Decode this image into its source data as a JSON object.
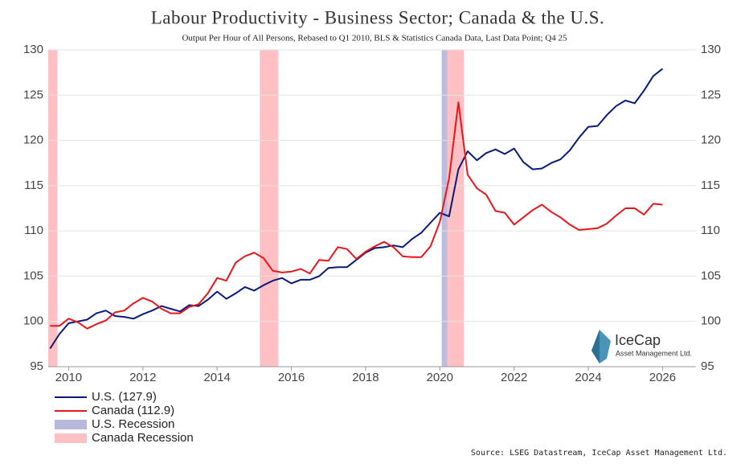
{
  "chart_data": {
    "type": "line",
    "title": "Labour Productivity - Business Sector; Canada & the U.S.",
    "subtitle": "Output Per Hour of All Persons, Rebased to Q1 2010, BLS & Statistics Canada Data, Last Data Point; Q4 25",
    "source": "Source: LSEG Datastream, IceCap Asset Management Ltd.",
    "logo": {
      "name": "IceCap",
      "tagline": "Asset Management Ltd."
    },
    "x": [
      2009.5,
      2009.75,
      2010,
      2010.25,
      2010.5,
      2010.75,
      2011,
      2011.25,
      2011.5,
      2011.75,
      2012,
      2012.25,
      2012.5,
      2012.75,
      2013,
      2013.25,
      2013.5,
      2013.75,
      2014,
      2014.25,
      2014.5,
      2014.75,
      2015,
      2015.25,
      2015.5,
      2015.75,
      2016,
      2016.25,
      2016.5,
      2016.75,
      2017,
      2017.25,
      2017.5,
      2017.75,
      2018,
      2018.25,
      2018.5,
      2018.75,
      2019,
      2019.25,
      2019.5,
      2019.75,
      2020,
      2020.25,
      2020.5,
      2020.75,
      2021,
      2021.25,
      2021.5,
      2021.75,
      2022,
      2022.25,
      2022.5,
      2022.75,
      2023,
      2023.25,
      2023.5,
      2023.75,
      2024,
      2024.25,
      2024.5,
      2024.75,
      2025,
      2025.25,
      2025.5,
      2025.75,
      2026
    ],
    "series": [
      {
        "name": "U.S. (127.9)",
        "color": "#0a1a7a",
        "values": [
          97.0,
          98.6,
          99.8,
          100.0,
          100.2,
          100.9,
          101.2,
          100.6,
          100.5,
          100.3,
          100.8,
          101.2,
          101.7,
          101.4,
          101.1,
          101.8,
          101.7,
          102.4,
          103.3,
          102.5,
          103.1,
          103.8,
          103.4,
          104.0,
          104.5,
          104.8,
          104.2,
          104.6,
          104.6,
          105.0,
          105.9,
          106.0,
          106.0,
          106.8,
          107.6,
          108.1,
          108.2,
          108.4,
          108.2,
          109.1,
          109.8,
          110.9,
          112.0,
          111.6,
          116.8,
          118.8,
          117.8,
          118.6,
          119.0,
          118.5,
          119.1,
          117.6,
          116.8,
          116.9,
          117.5,
          117.9,
          118.9,
          120.3,
          121.5,
          121.6,
          122.8,
          123.8,
          124.4,
          124.1,
          125.5,
          127.1,
          127.9
        ]
      },
      {
        "name": "Canada (112.9)",
        "color": "#e8161b",
        "values": [
          99.5,
          99.5,
          100.3,
          99.9,
          99.2,
          99.7,
          100.1,
          101.0,
          101.2,
          102.0,
          102.6,
          102.2,
          101.4,
          100.9,
          100.9,
          101.6,
          101.9,
          103.1,
          104.8,
          104.5,
          106.5,
          107.2,
          107.6,
          107.0,
          105.6,
          105.4,
          105.5,
          105.8,
          105.3,
          106.8,
          106.7,
          108.2,
          108.0,
          106.9,
          107.7,
          108.3,
          108.8,
          108.2,
          107.2,
          107.1,
          107.1,
          108.3,
          111.0,
          115.8,
          124.2,
          116.2,
          114.7,
          114.0,
          112.2,
          112.0,
          110.7,
          111.5,
          112.3,
          112.9,
          112.1,
          111.5,
          110.7,
          110.1,
          110.2,
          110.3,
          110.8,
          111.7,
          112.5,
          112.5,
          111.8,
          113.0,
          112.9
        ]
      }
    ],
    "recessions": [
      {
        "name": "U.S. Recession",
        "color": "#b8b8dc",
        "periods": [
          [
            2020.05,
            2020.2
          ]
        ]
      },
      {
        "name": "Canada Recession",
        "color": "#ffc0c4",
        "periods": [
          [
            2009.45,
            2009.7
          ],
          [
            2015.15,
            2015.65
          ],
          [
            2020.2,
            2020.65
          ]
        ]
      }
    ],
    "xlim": [
      2009.45,
      2026.9
    ],
    "xticks": [
      2010,
      2012,
      2014,
      2016,
      2018,
      2020,
      2022,
      2024,
      2026
    ],
    "ylim": [
      95,
      130
    ],
    "yticks": [
      95,
      100,
      105,
      110,
      115,
      120,
      125,
      130
    ],
    "grid": true
  }
}
